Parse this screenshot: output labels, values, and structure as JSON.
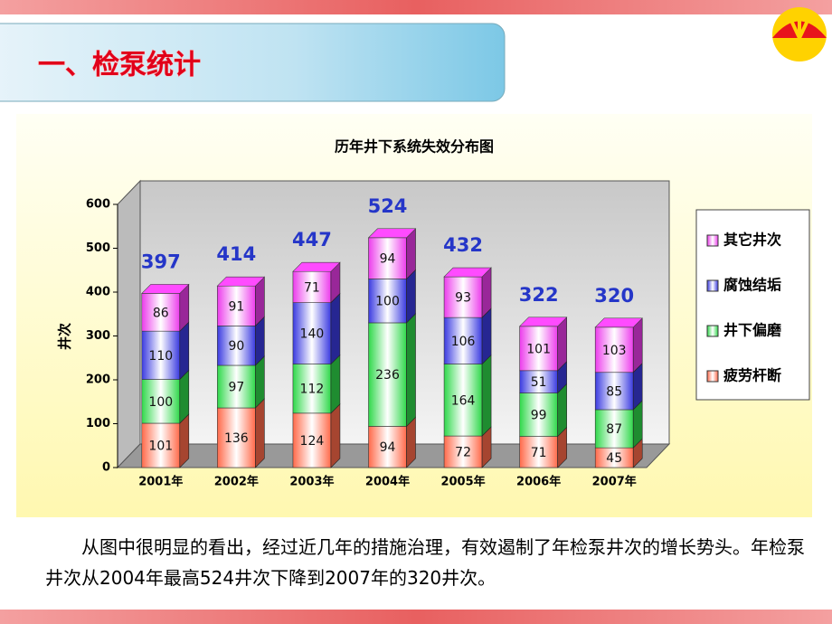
{
  "header": {
    "title": "一、检泵统计"
  },
  "chart_data": {
    "type": "bar",
    "stacked": true,
    "title": "历年井下系统失效分布图",
    "y_label": "井次",
    "categories": [
      "2001年",
      "2002年",
      "2003年",
      "2004年",
      "2005年",
      "2006年",
      "2007年"
    ],
    "series": [
      {
        "name": "疲劳杆断",
        "color": "#ff6a4a",
        "values": [
          101,
          136,
          124,
          94,
          72,
          71,
          45
        ]
      },
      {
        "name": "井下偏磨",
        "color": "#2fd84a",
        "values": [
          100,
          97,
          112,
          236,
          164,
          99,
          87
        ]
      },
      {
        "name": "腐蚀结垢",
        "color": "#3a3ae0",
        "values": [
          110,
          90,
          140,
          100,
          106,
          51,
          85
        ]
      },
      {
        "name": "其它井次",
        "color": "#ec3cec",
        "values": [
          86,
          91,
          71,
          94,
          93,
          101,
          103
        ]
      }
    ],
    "totals": [
      397,
      414,
      447,
      524,
      432,
      322,
      320
    ],
    "ylim": [
      0,
      600
    ],
    "yticks": [
      0,
      100,
      200,
      300,
      400,
      500,
      600
    ],
    "legend": "right"
  },
  "body": {
    "text": "从图中很明显的看出，经过近几年的措施治理，有效遏制了年检泵井次的增长势头。年检泵井次从2004年最高524井次下降到2007年的320井次。"
  }
}
